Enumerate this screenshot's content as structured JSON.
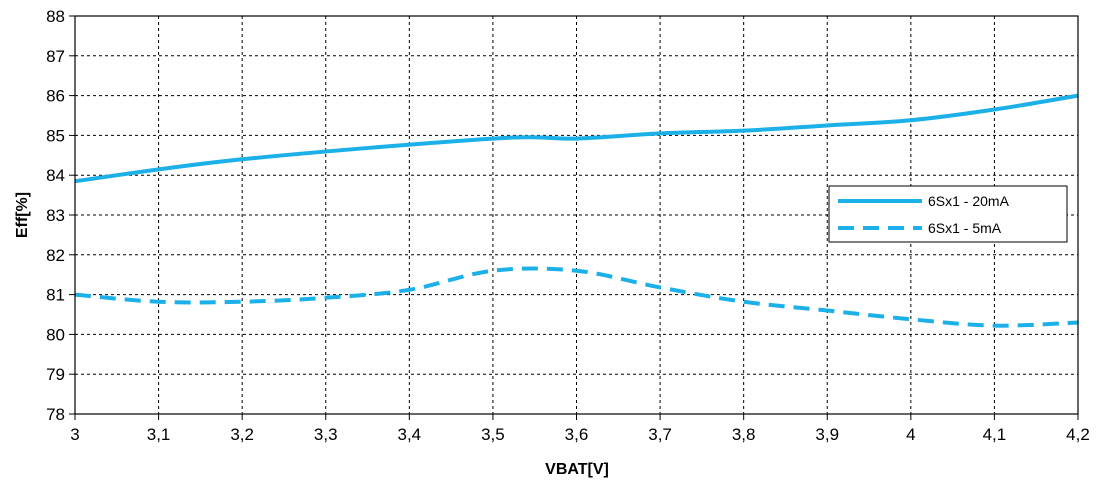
{
  "chart_data": {
    "type": "line",
    "xlabel": "VBAT[V]",
    "ylabel": "Eff[%]",
    "xlim": [
      3,
      4.2
    ],
    "ylim": [
      78,
      88
    ],
    "x_ticks": [
      "3",
      "3,1",
      "3,2",
      "3,3",
      "3,4",
      "3,5",
      "3,6",
      "3,7",
      "3,8",
      "3,9",
      "4",
      "4,1",
      "4,2"
    ],
    "y_ticks": [
      "78",
      "79",
      "80",
      "81",
      "82",
      "83",
      "84",
      "85",
      "86",
      "87",
      "88"
    ],
    "grid": true,
    "legend_position": "right",
    "series": [
      {
        "name": "6Sx1 - 20mA",
        "style": "solid",
        "color": "#1CB0E8",
        "x": [
          3,
          3.2,
          3.5,
          3.6,
          3.7,
          3.8,
          3.9,
          4,
          4.1,
          4.2
        ],
        "y": [
          83.85,
          84.4,
          84.92,
          84.92,
          85.05,
          85.12,
          85.25,
          85.38,
          85.65,
          86.0
        ]
      },
      {
        "name": "6Sx1 - 5mA",
        "style": "dashed",
        "color": "#1CB0E8",
        "x": [
          3,
          3.1,
          3.2,
          3.3,
          3.4,
          3.5,
          3.6,
          3.7,
          3.8,
          3.9,
          4,
          4.1,
          4.2
        ],
        "y": [
          81.0,
          80.82,
          80.82,
          80.92,
          81.12,
          81.6,
          81.6,
          81.18,
          80.82,
          80.6,
          80.38,
          80.22,
          80.3
        ]
      }
    ]
  }
}
